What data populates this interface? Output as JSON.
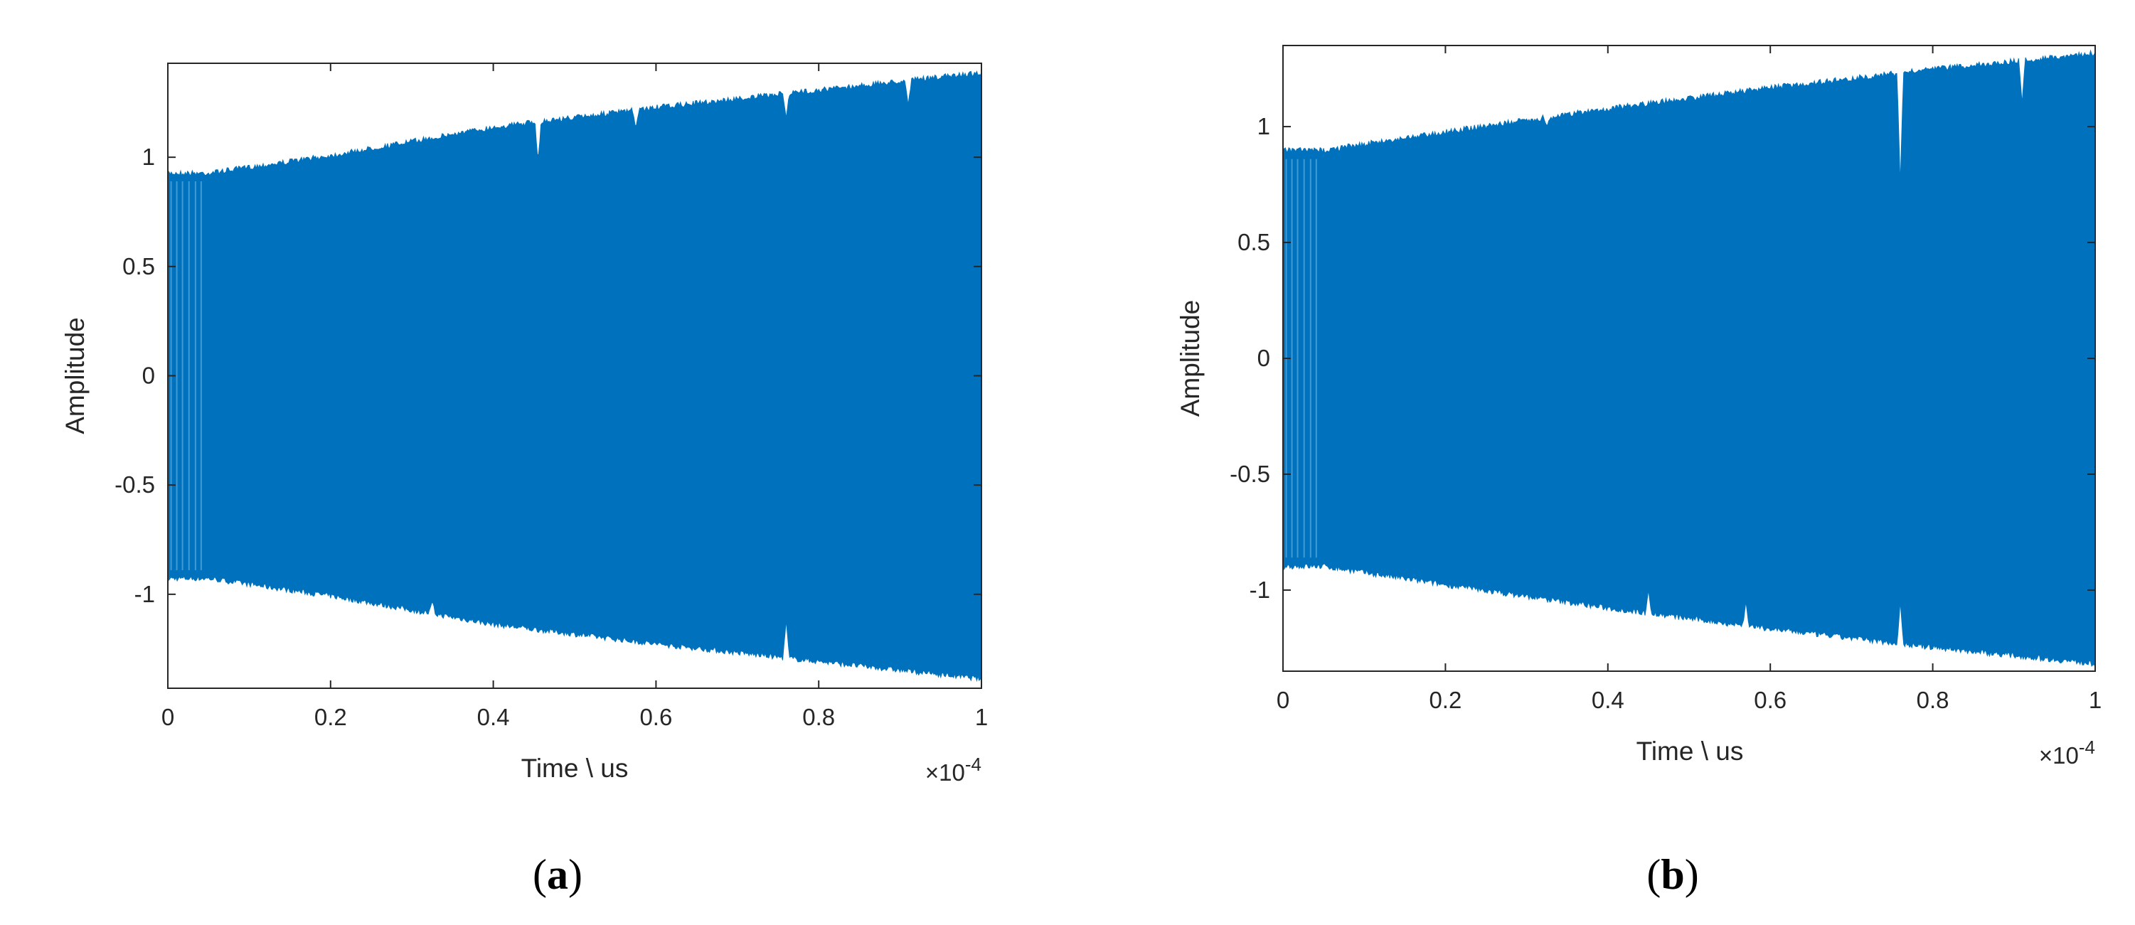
{
  "colors": {
    "signal": "#0072BD",
    "axis": "#262626",
    "background": "#ffffff"
  },
  "chart_data": [
    {
      "type": "line",
      "panel_label": "(a)",
      "panel_label_letter": "a",
      "title": "",
      "xlabel": "Time \\ us",
      "ylabel": "Amplitude",
      "x_multiplier": "×10",
      "x_multiplier_exponent": "-4",
      "xlim": [
        0,
        0.0001
      ],
      "ylim": [
        -1.43,
        1.43
      ],
      "xticks": [
        0,
        0.2,
        0.4,
        0.6,
        0.8,
        1
      ],
      "xtick_labels": [
        "0",
        "0.2",
        "0.4",
        "0.6",
        "0.8",
        "1"
      ],
      "yticks": [
        -1,
        -0.5,
        0,
        0.5,
        1
      ],
      "ytick_labels": [
        "-1",
        "-0.5",
        "0",
        "0.5",
        "1"
      ],
      "grid": false,
      "series": [
        {
          "description_free": true,
          "envelope_upper": {
            "x": [
              0.0,
              0.05,
              0.2,
              0.4,
              0.6,
              0.8,
              1.0
            ],
            "y": [
              0.94,
              0.94,
              1.02,
              1.15,
              1.24,
              1.32,
              1.4
            ]
          },
          "envelope_lower": {
            "x": [
              0.0,
              0.05,
              0.2,
              0.4,
              0.6,
              0.8,
              1.0
            ],
            "y": [
              -0.94,
              -0.94,
              -1.02,
              -1.15,
              -1.24,
              -1.32,
              -1.4
            ]
          },
          "dips_upper": [
            {
              "x": 0.455,
              "y": 0.98
            },
            {
              "x": 0.575,
              "y": 1.13
            },
            {
              "x": 0.76,
              "y": 1.18
            },
            {
              "x": 0.91,
              "y": 1.24
            }
          ],
          "dips_lower": [
            {
              "x": 0.325,
              "y": -1.03
            },
            {
              "x": 0.76,
              "y": -1.12
            }
          ]
        }
      ]
    },
    {
      "type": "line",
      "panel_label": "(b)",
      "panel_label_letter": "b",
      "title": "",
      "xlabel": "Time \\ us",
      "ylabel": "Amplitude",
      "x_multiplier": "×10",
      "x_multiplier_exponent": "-4",
      "xlim": [
        0,
        0.0001
      ],
      "ylim": [
        -1.35,
        1.35
      ],
      "xticks": [
        0,
        0.2,
        0.4,
        0.6,
        0.8,
        1
      ],
      "xtick_labels": [
        "0",
        "0.2",
        "0.4",
        "0.6",
        "0.8",
        "1"
      ],
      "yticks": [
        -1,
        -0.5,
        0,
        0.5,
        1
      ],
      "ytick_labels": [
        "-1",
        "-0.5",
        "0",
        "0.5",
        "1"
      ],
      "grid": false,
      "series": [
        {
          "description_free": true,
          "envelope_upper": {
            "x": [
              0.0,
              0.05,
              0.2,
              0.4,
              0.6,
              0.8,
              1.0
            ],
            "y": [
              0.91,
              0.91,
              0.99,
              1.09,
              1.18,
              1.26,
              1.33
            ]
          },
          "envelope_lower": {
            "x": [
              0.0,
              0.05,
              0.2,
              0.4,
              0.6,
              0.8,
              1.0
            ],
            "y": [
              -0.91,
              -0.91,
              -0.99,
              -1.09,
              -1.18,
              -1.26,
              -1.33
            ]
          },
          "dips_upper": [
            {
              "x": 0.325,
              "y": 1.0
            },
            {
              "x": 0.76,
              "y": 0.75
            },
            {
              "x": 0.91,
              "y": 1.1
            }
          ],
          "dips_lower": [
            {
              "x": 0.45,
              "y": -1.0
            },
            {
              "x": 0.57,
              "y": -1.05
            },
            {
              "x": 0.76,
              "y": -1.05
            }
          ]
        }
      ]
    }
  ]
}
